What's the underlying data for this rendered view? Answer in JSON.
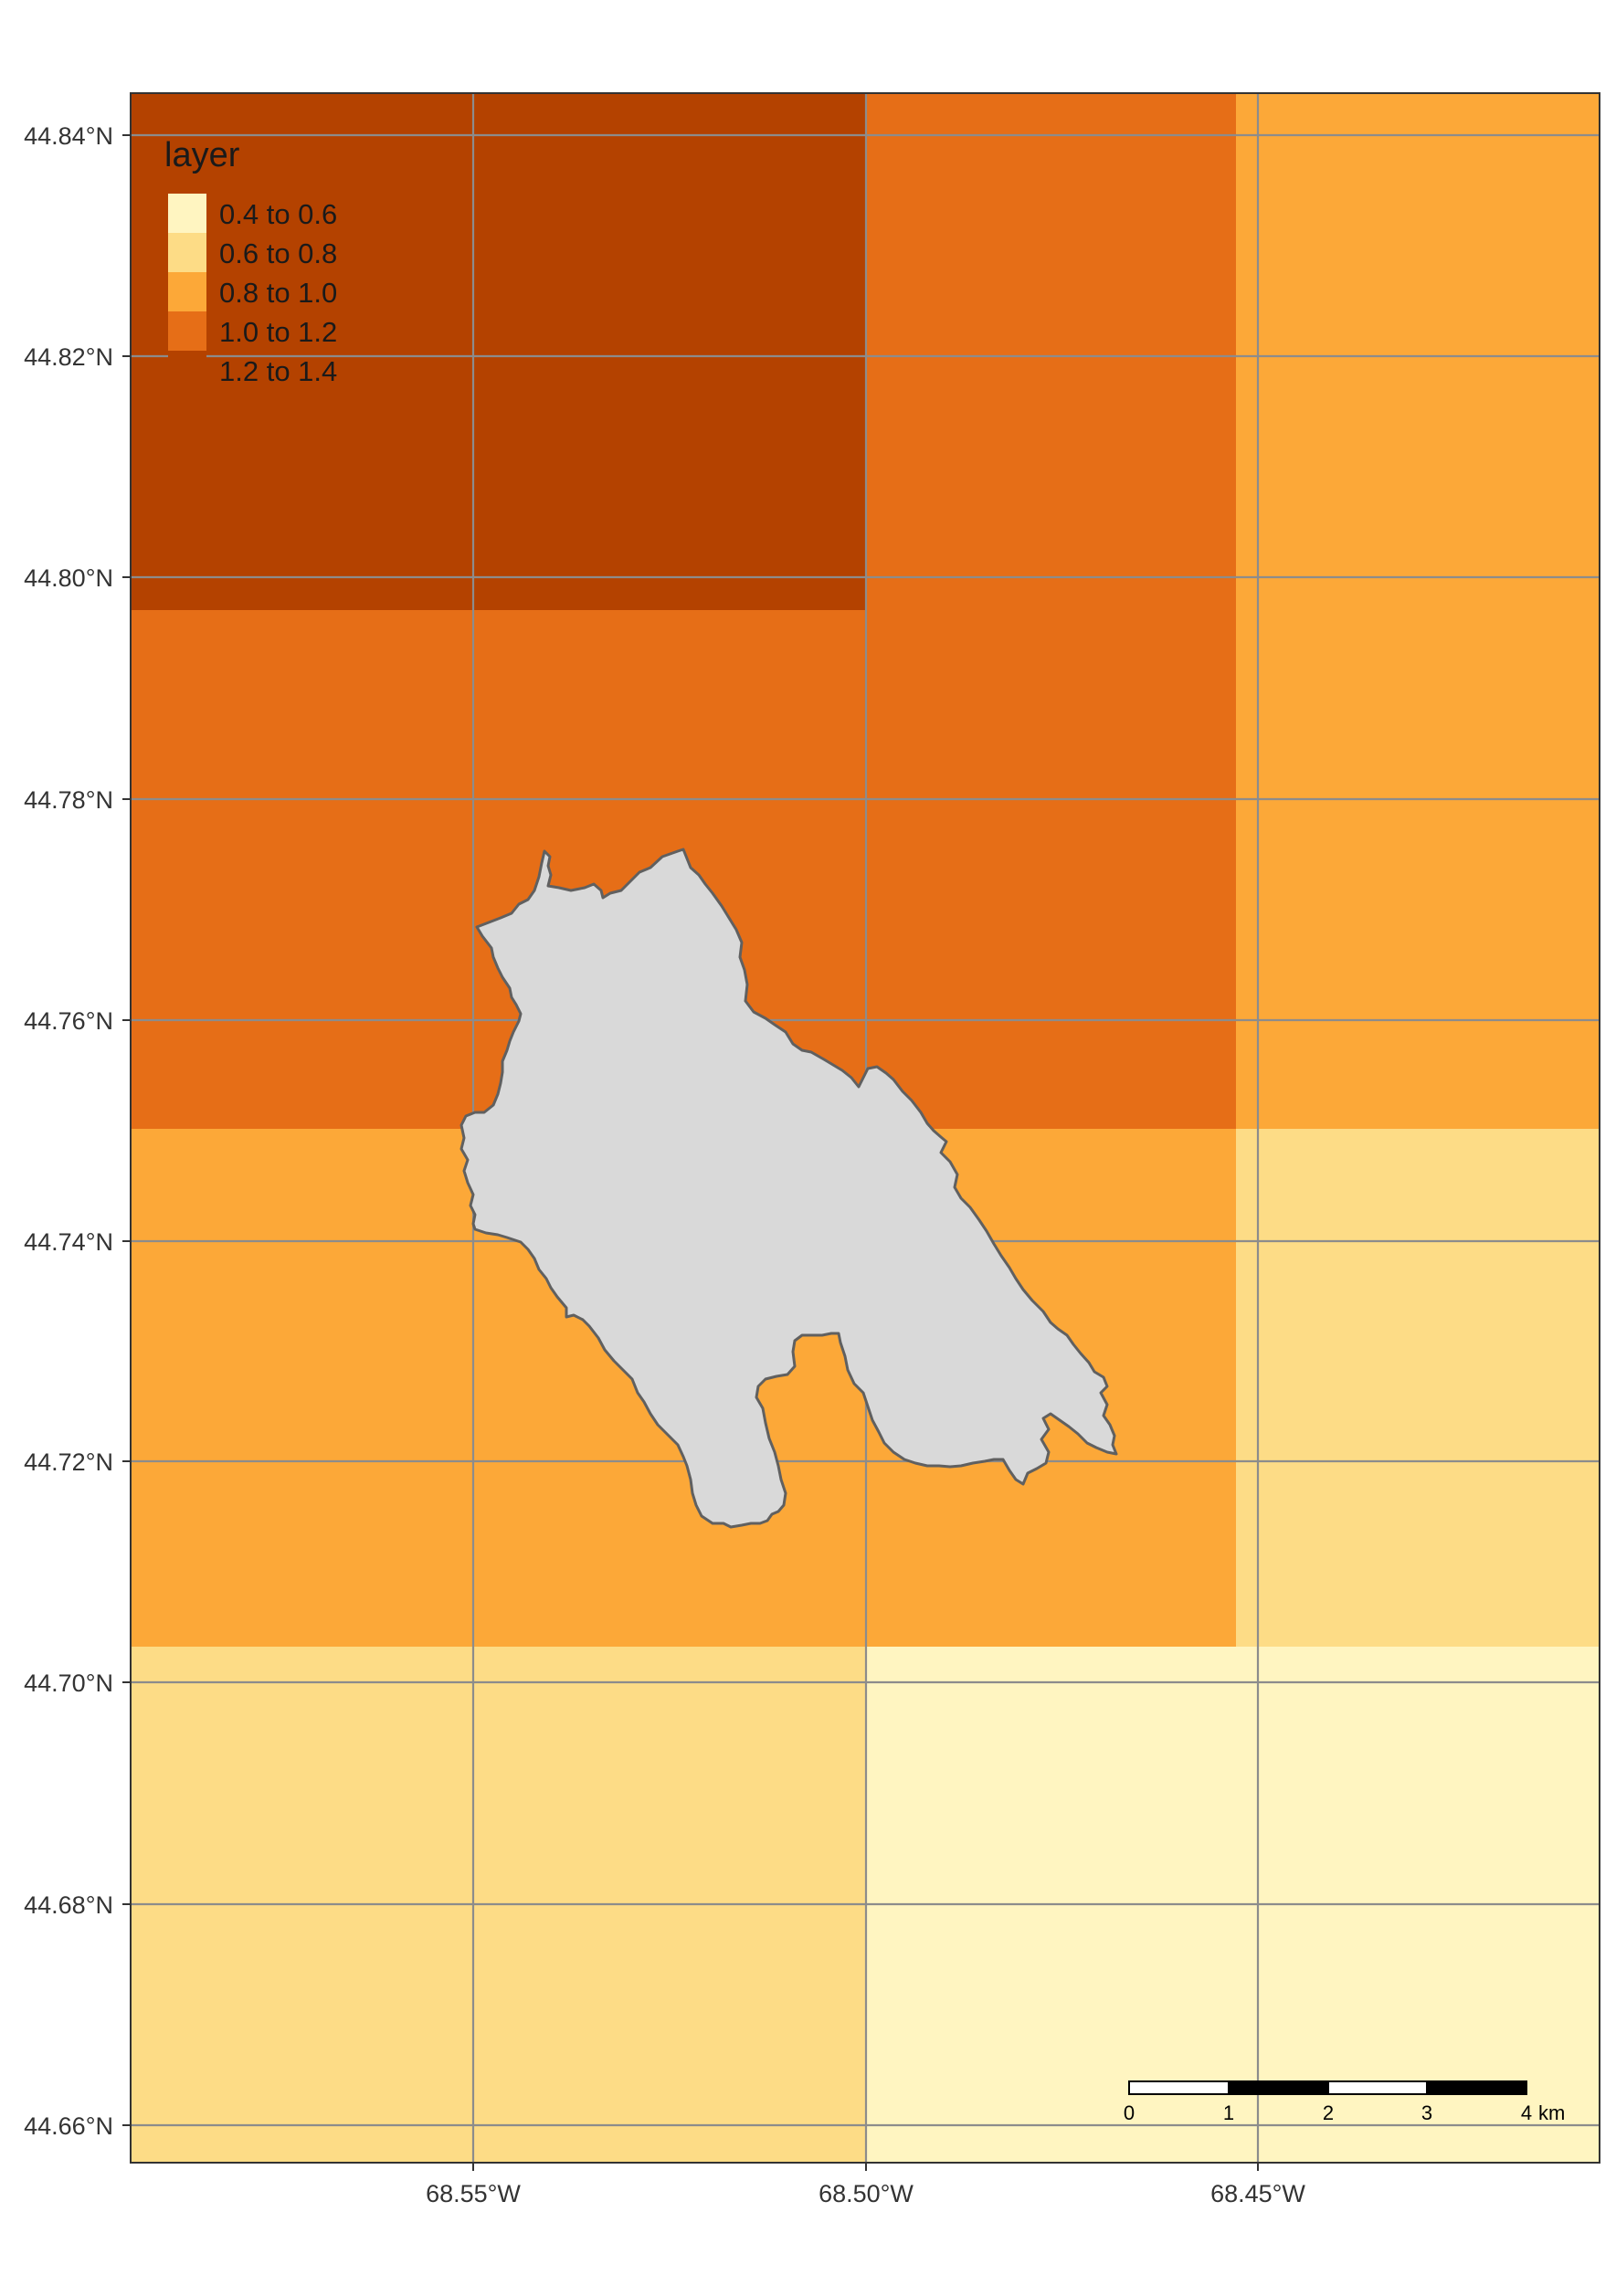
{
  "legend": {
    "title": "layer",
    "classes": [
      {
        "label": "0.4 to 0.6",
        "color": "#FFF5C1"
      },
      {
        "label": "0.6 to 0.8",
        "color": "#FDDC86"
      },
      {
        "label": "0.8 to 1.0",
        "color": "#FCA838"
      },
      {
        "label": "1.0 to 1.2",
        "color": "#E66E17"
      },
      {
        "label": "1.2 to 1.4",
        "color": "#B44200"
      }
    ]
  },
  "axes": {
    "y_ticks": [
      "44.84°N",
      "44.82°N",
      "44.80°N",
      "44.78°N",
      "44.76°N",
      "44.74°N",
      "44.72°N",
      "44.70°N",
      "44.68°N",
      "44.66°N"
    ],
    "x_ticks": [
      "68.55°W",
      "68.50°W",
      "68.45°W"
    ]
  },
  "scale_bar": {
    "labels": [
      "0",
      "1",
      "2",
      "3",
      "4"
    ],
    "unit": "km"
  },
  "colors": {
    "graticule": "#8C8C8C",
    "polygon_fill": "#D9D9D9",
    "polygon_stroke": "#606060",
    "frame": "#333333"
  }
}
